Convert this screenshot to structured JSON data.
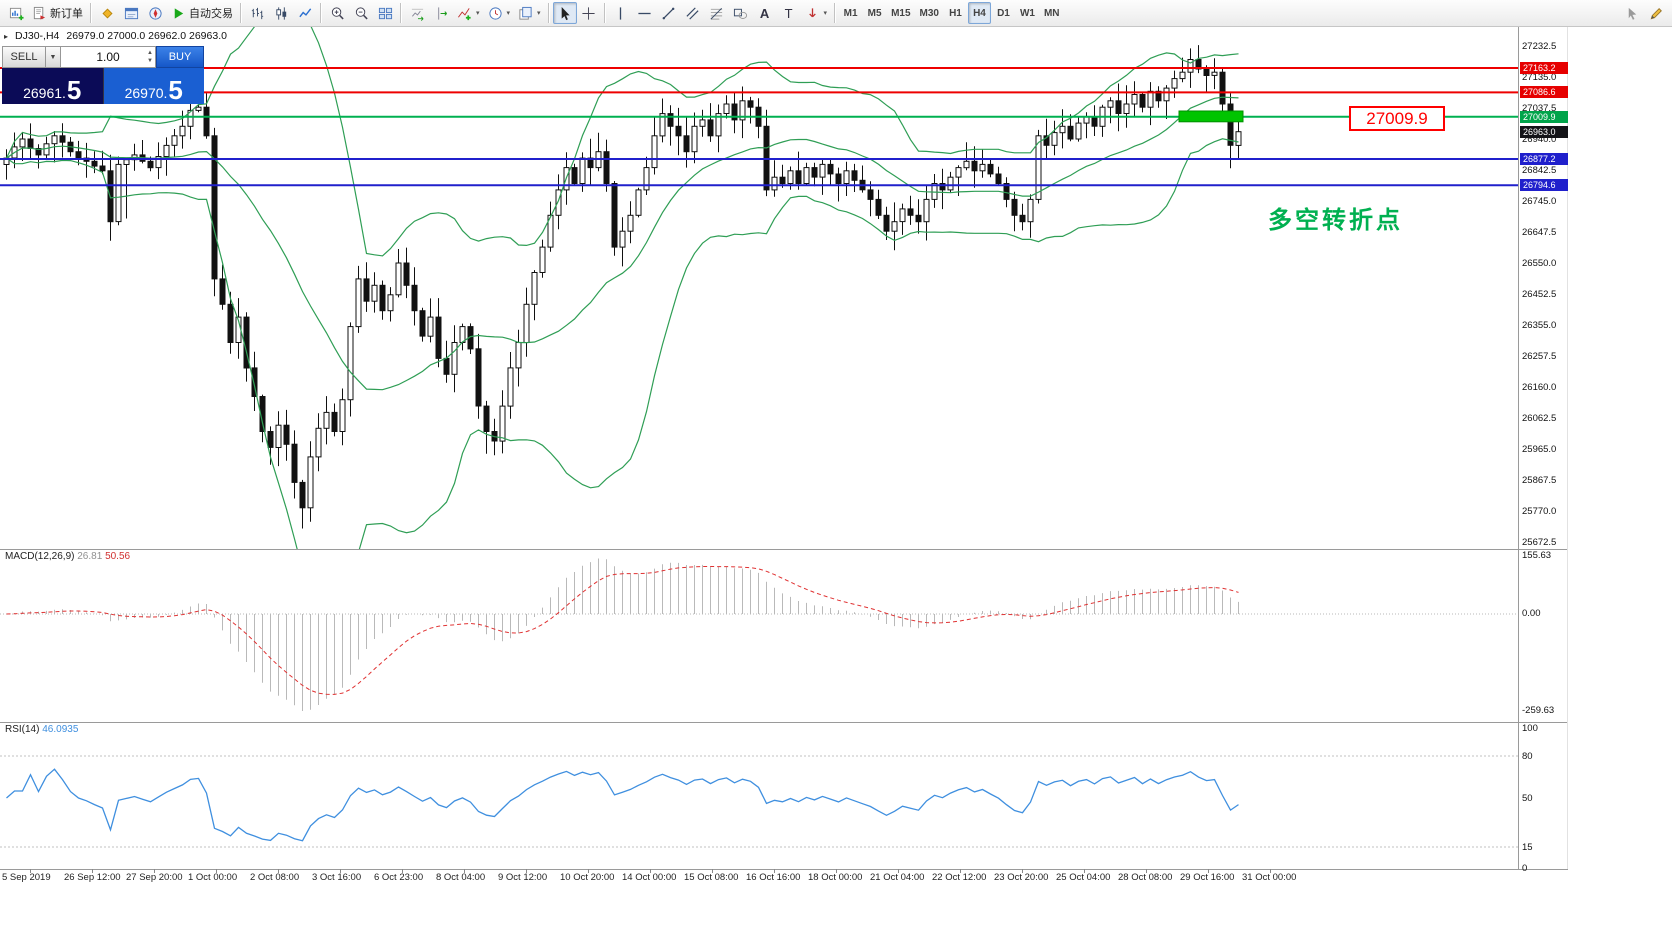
{
  "toolbar": {
    "new_order_label": "新订单",
    "autotrading_label": "自动交易",
    "text_tool_label": "A",
    "label_tool_label": "T",
    "timeframes": [
      "M1",
      "M5",
      "M15",
      "M30",
      "H1",
      "H4",
      "D1",
      "W1",
      "MN"
    ],
    "active_timeframe": "H4"
  },
  "chart": {
    "symbol_title": "DJ30-,H4",
    "ohlc": "26979.0 27000.0 26962.0 26963.0"
  },
  "trade_panel": {
    "sell_label": "SELL",
    "buy_label": "BUY",
    "volume": "1.00",
    "sell_price": "26961.",
    "sell_price_big": "5",
    "buy_price": "26970.",
    "buy_price_big": "5"
  },
  "annotations": {
    "price_callout": "27009.9",
    "turning_point_text": "多空转折点",
    "callout_color": "#ff0000",
    "turning_point_color": "#00b050"
  },
  "macd_panel": {
    "name": "MACD(12,26,9)",
    "value_main": "26.81",
    "value_signal": "50.56",
    "scale_labels": [
      "155.63",
      "0.00",
      "-259.63"
    ],
    "histogram_color": "#b9b9b9",
    "signal_color": "#e03232"
  },
  "rsi_panel": {
    "name": "RSI(14)",
    "value": "46.0935",
    "scale_labels": [
      {
        "v": 100,
        "t": "100"
      },
      {
        "v": 80,
        "t": "80"
      },
      {
        "v": 50,
        "t": "50"
      },
      {
        "v": 15,
        "t": "15"
      },
      {
        "v": 0,
        "t": "0"
      }
    ],
    "levels": [
      80,
      15
    ],
    "line_color": "#3f8fdf"
  },
  "chart_data": {
    "type": "candlestick",
    "symbol": "DJ30-",
    "timeframe": "H4",
    "price_range": [
      25672.5,
      27232.5
    ],
    "first_open": 26860,
    "closes": [
      26880,
      26915,
      26940,
      26910,
      26890,
      26925,
      26950,
      26930,
      26900,
      26880,
      26870,
      26855,
      26840,
      26680,
      26860,
      26875,
      26890,
      26870,
      26850,
      26885,
      26920,
      26950,
      26980,
      27030,
      27040,
      26950,
      26500,
      26420,
      26300,
      26380,
      26220,
      26130,
      26020,
      25970,
      26040,
      25980,
      25860,
      25780,
      25940,
      26030,
      26080,
      26020,
      26120,
      26350,
      26500,
      26430,
      26480,
      26400,
      26450,
      26550,
      26480,
      26400,
      26320,
      26380,
      26250,
      26200,
      26300,
      26350,
      26280,
      26100,
      26020,
      25990,
      26100,
      26220,
      26300,
      26420,
      26520,
      26600,
      26700,
      26780,
      26850,
      26800,
      26880,
      26850,
      26900,
      26800,
      26600,
      26650,
      26700,
      26780,
      26850,
      26950,
      27020,
      26980,
      26950,
      26900,
      26980,
      27000,
      26950,
      27020,
      27050,
      27000,
      27060,
      27040,
      26980,
      26780,
      26820,
      26800,
      26840,
      26800,
      26850,
      26820,
      26860,
      26830,
      26800,
      26840,
      26810,
      26780,
      26750,
      26700,
      26650,
      26680,
      26720,
      26700,
      26680,
      26750,
      26800,
      26780,
      26820,
      26850,
      26870,
      26840,
      26860,
      26830,
      26800,
      26750,
      26700,
      26680,
      26750,
      26950,
      26920,
      26960,
      26980,
      26940,
      26990,
      27010,
      26980,
      27040,
      27060,
      27020,
      27050,
      27080,
      27040,
      27090,
      27060,
      27100,
      27130,
      27150,
      27190,
      27160,
      27140,
      27150,
      27050,
      26920,
      26963
    ],
    "wick_overrides": {
      "13": {
        "low": 26620
      },
      "15": {
        "low": 26690
      },
      "23": {
        "high": 27080
      },
      "26": {
        "high": 26975
      },
      "37": {
        "low": 25715
      },
      "60": {
        "low": 25950
      },
      "148": {
        "high": 27225
      },
      "153": {
        "low": 26848
      }
    },
    "bollinger": {
      "period": 20,
      "deviation": 2,
      "color": "#2f9e55"
    },
    "horizontal_lines": [
      {
        "price": 27163.2,
        "color": "#ee0000",
        "width": 2
      },
      {
        "price": 27086.6,
        "color": "#ee0000",
        "width": 2
      },
      {
        "price": 27009.9,
        "color": "#00b050",
        "width": 2
      },
      {
        "price": 26877.2,
        "color": "#2020cc",
        "width": 2
      },
      {
        "price": 26794.6,
        "color": "#2020cc",
        "width": 2
      }
    ],
    "current_price": 26963.0,
    "green_zone": {
      "candle_from": 147,
      "candle_to": 154,
      "price_top": 27028,
      "price_bottom": 26994,
      "color": "#00c400",
      "border": "#008f00"
    },
    "price_axis_ticks": [
      "27232.5",
      "27135.0",
      "27037.5",
      "26940.0",
      "26842.5",
      "26745.0",
      "26647.5",
      "26550.0",
      "26452.5",
      "26355.0",
      "26257.5",
      "26160.0",
      "26062.5",
      "25965.0",
      "25867.5",
      "25770.0",
      "25672.5"
    ],
    "price_tags": [
      {
        "price": 27163.2,
        "text": "27163.2",
        "bg": "#e60000"
      },
      {
        "price": 27086.6,
        "text": "27086.6",
        "bg": "#e60000"
      },
      {
        "price": 27009.9,
        "text": "27009.9",
        "bg": "#00a44a"
      },
      {
        "price": 26963.0,
        "text": "26963.0",
        "bg": "#141418"
      },
      {
        "price": 26877.2,
        "text": "26877.2",
        "bg": "#2020cc"
      },
      {
        "price": 26794.6,
        "text": "26794.6",
        "bg": "#2020cc"
      }
    ],
    "time_labels": [
      "5 Sep 2019",
      "26 Sep 12:00",
      "27 Sep 20:00",
      "1 Oct 00:00",
      "2 Oct 08:00",
      "3 Oct 16:00",
      "6 Oct 23:00",
      "8 Oct 04:00",
      "9 Oct 12:00",
      "10 Oct 20:00",
      "14 Oct 00:00",
      "15 Oct 08:00",
      "16 Oct 16:00",
      "18 Oct 00:00",
      "21 Oct 04:00",
      "22 Oct 12:00",
      "23 Oct 20:00",
      "25 Oct 04:00",
      "28 Oct 08:00",
      "29 Oct 16:00",
      "31 Oct 00:00"
    ]
  }
}
